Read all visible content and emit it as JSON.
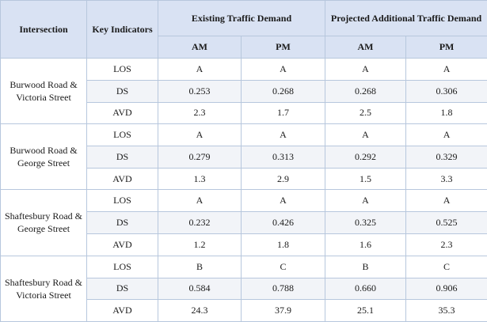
{
  "headers": {
    "intersection": "Intersection",
    "key_indicators": "Key Indicators",
    "existing": "Existing Traffic Demand",
    "projected": "Projected Additional Traffic Demand",
    "am": "AM",
    "pm": "PM"
  },
  "groups": [
    {
      "name": "Burwood Road & Victoria Street",
      "rows": [
        {
          "indicator": "LOS",
          "ex_am": "A",
          "ex_pm": "A",
          "pr_am": "A",
          "pr_pm": "A"
        },
        {
          "indicator": "DS",
          "ex_am": "0.253",
          "ex_pm": "0.268",
          "pr_am": "0.268",
          "pr_pm": "0.306"
        },
        {
          "indicator": "AVD",
          "ex_am": "2.3",
          "ex_pm": "1.7",
          "pr_am": "2.5",
          "pr_pm": "1.8"
        }
      ]
    },
    {
      "name": "Burwood Road & George Street",
      "rows": [
        {
          "indicator": "LOS",
          "ex_am": "A",
          "ex_pm": "A",
          "pr_am": "A",
          "pr_pm": "A"
        },
        {
          "indicator": "DS",
          "ex_am": "0.279",
          "ex_pm": "0.313",
          "pr_am": "0.292",
          "pr_pm": "0.329"
        },
        {
          "indicator": "AVD",
          "ex_am": "1.3",
          "ex_pm": "2.9",
          "pr_am": "1.5",
          "pr_pm": "3.3"
        }
      ]
    },
    {
      "name": "Shaftesbury Road & George Street",
      "rows": [
        {
          "indicator": "LOS",
          "ex_am": "A",
          "ex_pm": "A",
          "pr_am": "A",
          "pr_pm": "A"
        },
        {
          "indicator": "DS",
          "ex_am": "0.232",
          "ex_pm": "0.426",
          "pr_am": "0.325",
          "pr_pm": "0.525"
        },
        {
          "indicator": "AVD",
          "ex_am": "1.2",
          "ex_pm": "1.8",
          "pr_am": "1.6",
          "pr_pm": "2.3"
        }
      ]
    },
    {
      "name": "Shaftesbury Road & Victoria Street",
      "rows": [
        {
          "indicator": "LOS",
          "ex_am": "B",
          "ex_pm": "C",
          "pr_am": "B",
          "pr_pm": "C"
        },
        {
          "indicator": "DS",
          "ex_am": "0.584",
          "ex_pm": "0.788",
          "pr_am": "0.660",
          "pr_pm": "0.906"
        },
        {
          "indicator": "AVD",
          "ex_am": "24.3",
          "ex_pm": "37.9",
          "pr_am": "25.1",
          "pr_pm": "35.3"
        }
      ]
    }
  ]
}
